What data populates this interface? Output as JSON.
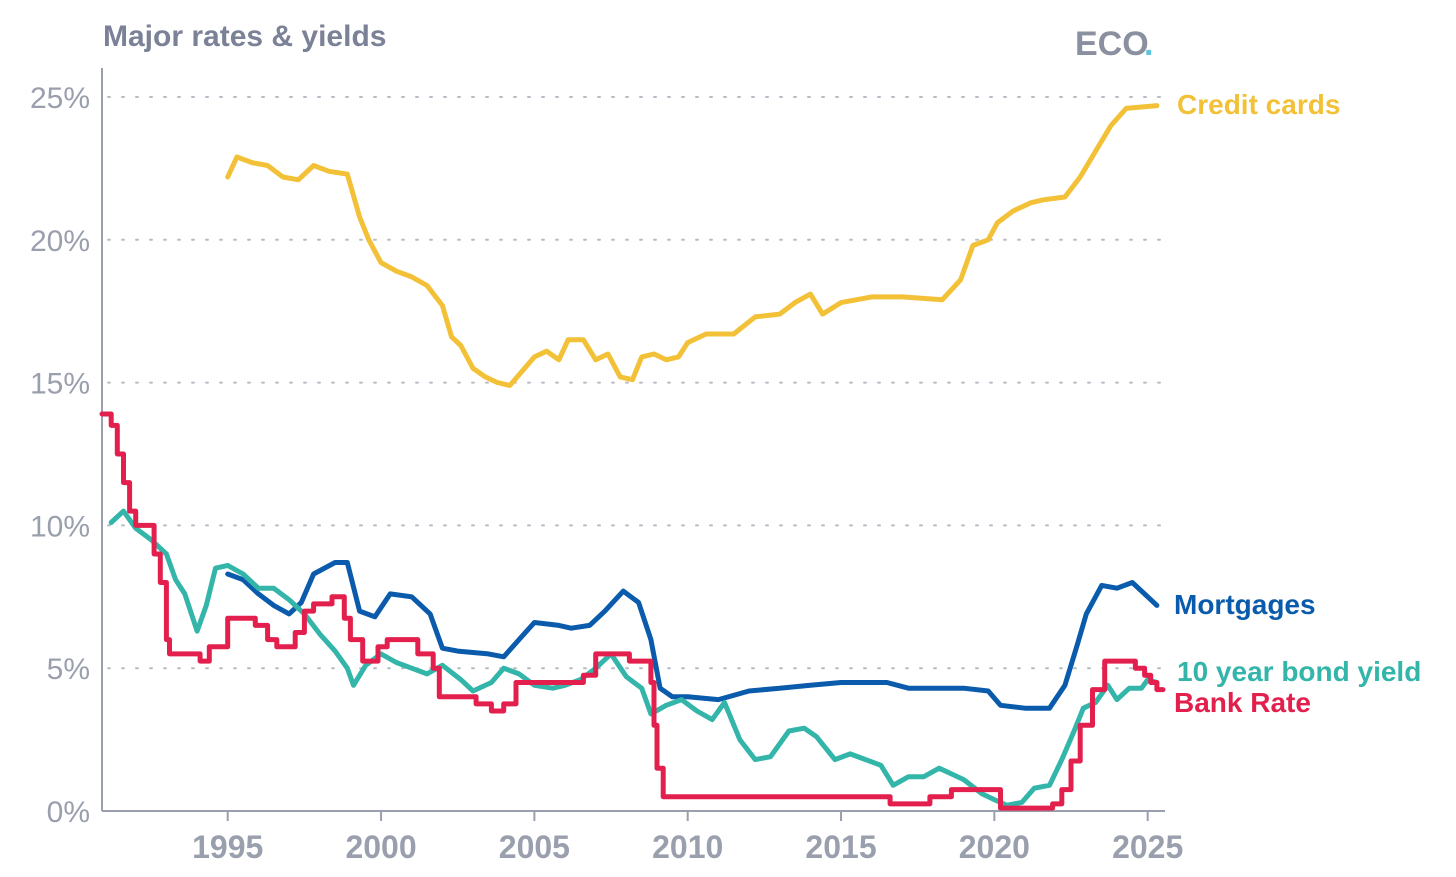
{
  "header": {
    "title": "Major rates & yields",
    "logo": "ECO",
    "logo_dot": "."
  },
  "colors": {
    "credit_cards": "#f3c138",
    "mortgages": "#0a5bab",
    "bond_yield": "#33b5aa",
    "bank_rate": "#e3204d"
  },
  "chart_data": {
    "type": "line",
    "title": "Major rates & yields",
    "xlabel": "",
    "ylabel": "",
    "xlim": [
      1990.9,
      2025.5
    ],
    "ylim": [
      0,
      25
    ],
    "grid": true,
    "y_ticks": [
      0,
      5,
      10,
      15,
      20,
      25
    ],
    "y_tick_labels": [
      "0%",
      "5%",
      "10%",
      "15%",
      "20%",
      "25%"
    ],
    "x_ticks": [
      1995,
      2000,
      2005,
      2010,
      2015,
      2020,
      2025
    ],
    "x_tick_labels": [
      "1995",
      "2000",
      "2005",
      "2010",
      "2015",
      "2020",
      "2025"
    ],
    "series": [
      {
        "name": "Credit cards",
        "color": "#f3c138",
        "step": false,
        "points": [
          [
            1995.0,
            22.2
          ],
          [
            1995.3,
            22.9
          ],
          [
            1995.8,
            22.7
          ],
          [
            1996.3,
            22.6
          ],
          [
            1996.8,
            22.2
          ],
          [
            1997.3,
            22.1
          ],
          [
            1997.8,
            22.6
          ],
          [
            1998.3,
            22.4
          ],
          [
            1998.9,
            22.3
          ],
          [
            1999.3,
            20.8
          ],
          [
            1999.6,
            20.0
          ],
          [
            2000.0,
            19.2
          ],
          [
            2000.5,
            18.9
          ],
          [
            2001.0,
            18.7
          ],
          [
            2001.5,
            18.4
          ],
          [
            2002.0,
            17.7
          ],
          [
            2002.3,
            16.6
          ],
          [
            2002.6,
            16.3
          ],
          [
            2003.0,
            15.5
          ],
          [
            2003.4,
            15.2
          ],
          [
            2003.8,
            15.0
          ],
          [
            2004.2,
            14.9
          ],
          [
            2004.6,
            15.4
          ],
          [
            2005.0,
            15.9
          ],
          [
            2005.4,
            16.1
          ],
          [
            2005.8,
            15.8
          ],
          [
            2006.1,
            16.5
          ],
          [
            2006.6,
            16.5
          ],
          [
            2007.0,
            15.8
          ],
          [
            2007.4,
            16.0
          ],
          [
            2007.8,
            15.2
          ],
          [
            2008.2,
            15.1
          ],
          [
            2008.5,
            15.9
          ],
          [
            2008.9,
            16.0
          ],
          [
            2009.3,
            15.8
          ],
          [
            2009.7,
            15.9
          ],
          [
            2010.0,
            16.4
          ],
          [
            2010.6,
            16.7
          ],
          [
            2011.5,
            16.7
          ],
          [
            2012.2,
            17.3
          ],
          [
            2013.0,
            17.4
          ],
          [
            2013.5,
            17.8
          ],
          [
            2014.0,
            18.1
          ],
          [
            2014.4,
            17.4
          ],
          [
            2015.0,
            17.8
          ],
          [
            2016.0,
            18.0
          ],
          [
            2017.0,
            18.0
          ],
          [
            2018.3,
            17.9
          ],
          [
            2018.9,
            18.6
          ],
          [
            2019.3,
            19.8
          ],
          [
            2019.8,
            20.0
          ],
          [
            2020.1,
            20.6
          ],
          [
            2020.6,
            21.0
          ],
          [
            2021.2,
            21.3
          ],
          [
            2021.6,
            21.4
          ],
          [
            2022.3,
            21.5
          ],
          [
            2022.8,
            22.2
          ],
          [
            2023.3,
            23.1
          ],
          [
            2023.8,
            24.0
          ],
          [
            2024.3,
            24.6
          ],
          [
            2025.3,
            24.7
          ]
        ]
      },
      {
        "name": "Mortgages",
        "color": "#0a5bab",
        "step": false,
        "points": [
          [
            1995.0,
            8.3
          ],
          [
            1995.5,
            8.1
          ],
          [
            1996.0,
            7.6
          ],
          [
            1996.5,
            7.2
          ],
          [
            1997.0,
            6.9
          ],
          [
            1997.4,
            7.3
          ],
          [
            1997.8,
            8.3
          ],
          [
            1998.5,
            8.7
          ],
          [
            1998.9,
            8.7
          ],
          [
            1999.3,
            7.0
          ],
          [
            1999.8,
            6.8
          ],
          [
            2000.3,
            7.6
          ],
          [
            2001.0,
            7.5
          ],
          [
            2001.6,
            6.9
          ],
          [
            2002.0,
            5.7
          ],
          [
            2002.5,
            5.6
          ],
          [
            2003.5,
            5.5
          ],
          [
            2004.0,
            5.4
          ],
          [
            2004.5,
            6.0
          ],
          [
            2005.0,
            6.6
          ],
          [
            2005.8,
            6.5
          ],
          [
            2006.2,
            6.4
          ],
          [
            2006.8,
            6.5
          ],
          [
            2007.3,
            7.0
          ],
          [
            2007.9,
            7.7
          ],
          [
            2008.4,
            7.3
          ],
          [
            2008.8,
            6.0
          ],
          [
            2009.1,
            4.3
          ],
          [
            2009.5,
            4.0
          ],
          [
            2010.0,
            4.0
          ],
          [
            2011.0,
            3.9
          ],
          [
            2012.0,
            4.2
          ],
          [
            2013.0,
            4.3
          ],
          [
            2014.0,
            4.4
          ],
          [
            2015.0,
            4.5
          ],
          [
            2016.5,
            4.5
          ],
          [
            2017.2,
            4.3
          ],
          [
            2018.0,
            4.3
          ],
          [
            2019.0,
            4.3
          ],
          [
            2019.8,
            4.2
          ],
          [
            2020.2,
            3.7
          ],
          [
            2021.0,
            3.6
          ],
          [
            2021.8,
            3.6
          ],
          [
            2022.3,
            4.4
          ],
          [
            2022.7,
            5.8
          ],
          [
            2023.0,
            6.9
          ],
          [
            2023.5,
            7.9
          ],
          [
            2024.0,
            7.8
          ],
          [
            2024.5,
            8.0
          ],
          [
            2025.0,
            7.5
          ],
          [
            2025.3,
            7.2
          ]
        ]
      },
      {
        "name": "10 year bond yield",
        "color": "#33b5aa",
        "step": false,
        "points": [
          [
            1991.2,
            10.1
          ],
          [
            1991.6,
            10.5
          ],
          [
            1992.0,
            9.9
          ],
          [
            1992.5,
            9.5
          ],
          [
            1993.0,
            9.0
          ],
          [
            1993.3,
            8.1
          ],
          [
            1993.6,
            7.6
          ],
          [
            1994.0,
            6.3
          ],
          [
            1994.3,
            7.2
          ],
          [
            1994.6,
            8.5
          ],
          [
            1995.0,
            8.6
          ],
          [
            1995.5,
            8.3
          ],
          [
            1996.0,
            7.8
          ],
          [
            1996.5,
            7.8
          ],
          [
            1997.0,
            7.4
          ],
          [
            1997.5,
            6.9
          ],
          [
            1998.0,
            6.2
          ],
          [
            1998.5,
            5.6
          ],
          [
            1998.9,
            5.0
          ],
          [
            1999.1,
            4.4
          ],
          [
            1999.5,
            5.1
          ],
          [
            2000.0,
            5.5
          ],
          [
            2000.5,
            5.2
          ],
          [
            2001.0,
            5.0
          ],
          [
            2001.5,
            4.8
          ],
          [
            2002.0,
            5.1
          ],
          [
            2002.6,
            4.6
          ],
          [
            2003.0,
            4.2
          ],
          [
            2003.6,
            4.5
          ],
          [
            2004.0,
            5.0
          ],
          [
            2004.5,
            4.8
          ],
          [
            2005.0,
            4.4
          ],
          [
            2005.6,
            4.3
          ],
          [
            2006.0,
            4.4
          ],
          [
            2006.5,
            4.6
          ],
          [
            2007.0,
            5.0
          ],
          [
            2007.5,
            5.5
          ],
          [
            2008.0,
            4.7
          ],
          [
            2008.5,
            4.3
          ],
          [
            2008.8,
            3.4
          ],
          [
            2009.3,
            3.7
          ],
          [
            2009.8,
            3.9
          ],
          [
            2010.3,
            3.5
          ],
          [
            2010.8,
            3.2
          ],
          [
            2011.2,
            3.8
          ],
          [
            2011.7,
            2.5
          ],
          [
            2012.2,
            1.8
          ],
          [
            2012.7,
            1.9
          ],
          [
            2013.3,
            2.8
          ],
          [
            2013.8,
            2.9
          ],
          [
            2014.2,
            2.6
          ],
          [
            2014.8,
            1.8
          ],
          [
            2015.3,
            2.0
          ],
          [
            2015.8,
            1.8
          ],
          [
            2016.3,
            1.6
          ],
          [
            2016.7,
            0.9
          ],
          [
            2017.2,
            1.2
          ],
          [
            2017.7,
            1.2
          ],
          [
            2018.2,
            1.5
          ],
          [
            2018.6,
            1.3
          ],
          [
            2019.0,
            1.1
          ],
          [
            2019.6,
            0.6
          ],
          [
            2020.0,
            0.4
          ],
          [
            2020.4,
            0.2
          ],
          [
            2020.9,
            0.3
          ],
          [
            2021.3,
            0.8
          ],
          [
            2021.8,
            0.9
          ],
          [
            2022.2,
            1.8
          ],
          [
            2022.6,
            2.8
          ],
          [
            2022.9,
            3.6
          ],
          [
            2023.3,
            3.8
          ],
          [
            2023.7,
            4.4
          ],
          [
            2024.0,
            3.9
          ],
          [
            2024.4,
            4.3
          ],
          [
            2024.8,
            4.3
          ],
          [
            2025.0,
            4.6
          ],
          [
            2025.3,
            4.5
          ]
        ]
      },
      {
        "name": "Bank Rate",
        "color": "#e3204d",
        "step": true,
        "points": [
          [
            1990.9,
            13.9
          ],
          [
            1991.2,
            13.5
          ],
          [
            1991.4,
            12.5
          ],
          [
            1991.6,
            11.5
          ],
          [
            1991.8,
            10.5
          ],
          [
            1992.0,
            10.0
          ],
          [
            1992.6,
            9.0
          ],
          [
            1992.8,
            8.0
          ],
          [
            1993.0,
            6.0
          ],
          [
            1993.1,
            5.5
          ],
          [
            1994.1,
            5.25
          ],
          [
            1994.4,
            5.75
          ],
          [
            1995.0,
            6.75
          ],
          [
            1995.9,
            6.5
          ],
          [
            1996.3,
            6.0
          ],
          [
            1996.6,
            5.75
          ],
          [
            1997.2,
            6.25
          ],
          [
            1997.5,
            7.0
          ],
          [
            1997.8,
            7.25
          ],
          [
            1998.4,
            7.5
          ],
          [
            1998.8,
            6.75
          ],
          [
            1999.0,
            6.0
          ],
          [
            1999.4,
            5.25
          ],
          [
            1999.9,
            5.75
          ],
          [
            2000.2,
            6.0
          ],
          [
            2001.2,
            5.5
          ],
          [
            2001.7,
            5.0
          ],
          [
            2001.9,
            4.0
          ],
          [
            2003.1,
            3.75
          ],
          [
            2003.6,
            3.5
          ],
          [
            2004.0,
            3.75
          ],
          [
            2004.4,
            4.5
          ],
          [
            2005.5,
            4.5
          ],
          [
            2006.6,
            4.75
          ],
          [
            2007.0,
            5.5
          ],
          [
            2007.8,
            5.5
          ],
          [
            2008.1,
            5.25
          ],
          [
            2008.8,
            4.5
          ],
          [
            2008.9,
            3.0
          ],
          [
            2009.0,
            1.5
          ],
          [
            2009.2,
            0.5
          ],
          [
            2016.6,
            0.25
          ],
          [
            2017.9,
            0.5
          ],
          [
            2018.6,
            0.75
          ],
          [
            2020.2,
            0.1
          ],
          [
            2021.9,
            0.25
          ],
          [
            2022.2,
            0.75
          ],
          [
            2022.5,
            1.75
          ],
          [
            2022.8,
            3.0
          ],
          [
            2023.2,
            4.25
          ],
          [
            2023.6,
            5.25
          ],
          [
            2024.6,
            5.0
          ],
          [
            2024.9,
            4.75
          ],
          [
            2025.1,
            4.5
          ],
          [
            2025.3,
            4.25
          ]
        ]
      }
    ]
  }
}
